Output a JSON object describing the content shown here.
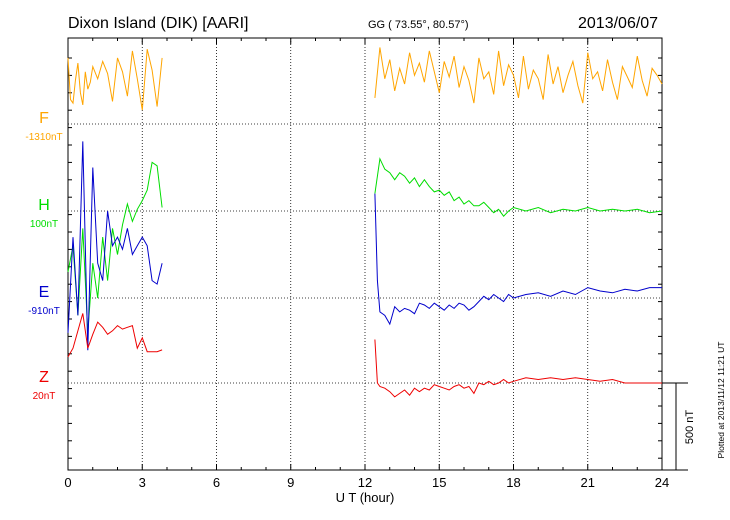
{
  "header": {
    "station": "Dixon Island (DIK)  [AARI]",
    "coords": "GG ( 73.55°,  80.57°)",
    "date": "2013/06/07"
  },
  "plotted": "Plotted at 2013/11/12 11:21 UT",
  "scale_bar_label": "500 nT",
  "chart_data": {
    "type": "line",
    "title": "Dixon Island (DIK)  [AARI]",
    "xlabel": "U T (hour)",
    "ylabel": "",
    "xlim": [
      0,
      24
    ],
    "x_ticks": [
      "0",
      "3",
      "6",
      "9",
      "12",
      "15",
      "18",
      "21",
      "24"
    ],
    "grid": true,
    "gap": [
      3.8,
      12.4
    ],
    "series": [
      {
        "name": "F",
        "baseline_label": "-1310nT",
        "color": "#FFA500",
        "x": [
          0.0,
          0.1,
          0.2,
          0.3,
          0.4,
          0.5,
          0.6,
          0.7,
          0.8,
          0.9,
          1.0,
          1.2,
          1.4,
          1.6,
          1.8,
          2.0,
          2.2,
          2.4,
          2.6,
          2.8,
          3.0,
          3.2,
          3.4,
          3.6,
          3.8,
          12.4,
          12.6,
          12.8,
          13.0,
          13.2,
          13.4,
          13.6,
          13.8,
          14.0,
          14.2,
          14.4,
          14.6,
          14.8,
          15.0,
          15.2,
          15.4,
          15.6,
          15.8,
          16.0,
          16.2,
          16.4,
          16.6,
          16.8,
          17.0,
          17.2,
          17.4,
          17.6,
          17.8,
          18.0,
          18.2,
          18.4,
          18.6,
          18.8,
          19.0,
          19.2,
          19.4,
          19.6,
          19.8,
          20.0,
          20.2,
          20.4,
          20.6,
          20.8,
          21.0,
          21.2,
          21.4,
          21.6,
          21.8,
          22.0,
          22.2,
          22.4,
          22.6,
          22.8,
          23.0,
          23.2,
          23.4,
          23.6,
          23.8,
          24.0
        ],
        "y": [
          380,
          140,
          120,
          250,
          350,
          180,
          110,
          300,
          200,
          240,
          330,
          260,
          360,
          290,
          130,
          380,
          300,
          160,
          420,
          260,
          80,
          430,
          310,
          100,
          380,
          150,
          440,
          260,
          370,
          190,
          320,
          230,
          410,
          280,
          350,
          240,
          420,
          300,
          180,
          360,
          270,
          390,
          210,
          330,
          250,
          120,
          380,
          260,
          300,
          170,
          420,
          220,
          340,
          280,
          150,
          390,
          200,
          310,
          260,
          140,
          400,
          230,
          330,
          180,
          280,
          360,
          220,
          120,
          410,
          260,
          300,
          190,
          370,
          240,
          140,
          330,
          270,
          210,
          390,
          250,
          160,
          320,
          280,
          230
        ]
      },
      {
        "name": "H",
        "baseline_label": "100nT",
        "color": "#00DD00",
        "x": [
          0.0,
          0.2,
          0.4,
          0.6,
          0.8,
          1.0,
          1.2,
          1.4,
          1.6,
          1.8,
          2.0,
          2.2,
          2.4,
          2.6,
          2.8,
          3.0,
          3.2,
          3.4,
          3.6,
          3.8,
          12.4,
          12.6,
          12.8,
          13.0,
          13.2,
          13.4,
          13.6,
          13.8,
          14.0,
          14.2,
          14.4,
          14.6,
          14.8,
          15.0,
          15.2,
          15.4,
          15.6,
          15.8,
          16.0,
          16.2,
          16.4,
          16.6,
          16.8,
          17.0,
          17.2,
          17.4,
          17.6,
          17.8,
          18.0,
          18.5,
          19.0,
          19.5,
          20.0,
          20.5,
          21.0,
          21.5,
          22.0,
          22.5,
          23.0,
          23.5,
          24.0
        ],
        "y": [
          -350,
          -200,
          -600,
          -100,
          -700,
          -300,
          -500,
          -150,
          -400,
          -100,
          -250,
          -80,
          40,
          -60,
          10,
          60,
          120,
          280,
          260,
          20,
          100,
          300,
          240,
          220,
          180,
          220,
          200,
          160,
          190,
          140,
          180,
          140,
          110,
          120,
          90,
          110,
          60,
          80,
          40,
          60,
          30,
          30,
          50,
          20,
          -10,
          10,
          -30,
          0,
          20,
          0,
          20,
          -10,
          10,
          0,
          20,
          0,
          10,
          0,
          10,
          -10,
          0
        ]
      },
      {
        "name": "E",
        "baseline_label": "-910nT",
        "color": "#0000CC",
        "x": [
          0.0,
          0.2,
          0.4,
          0.6,
          0.8,
          1.0,
          1.2,
          1.4,
          1.6,
          1.8,
          2.0,
          2.2,
          2.4,
          2.6,
          2.8,
          3.0,
          3.2,
          3.4,
          3.6,
          3.8,
          12.4,
          12.5,
          12.6,
          12.8,
          13.0,
          13.2,
          13.4,
          13.6,
          13.8,
          14.0,
          14.2,
          14.4,
          14.6,
          14.8,
          15.0,
          15.2,
          15.4,
          15.6,
          15.8,
          16.0,
          16.2,
          16.4,
          16.6,
          16.8,
          17.0,
          17.2,
          17.4,
          17.6,
          17.8,
          18.0,
          18.5,
          19.0,
          19.5,
          20.0,
          20.5,
          21.0,
          21.5,
          22.0,
          22.5,
          23.0,
          23.5,
          24.0
        ],
        "y": [
          -200,
          350,
          -100,
          900,
          -300,
          750,
          200,
          100,
          500,
          300,
          350,
          280,
          400,
          250,
          300,
          350,
          300,
          100,
          80,
          200,
          600,
          100,
          -80,
          -100,
          -150,
          -50,
          -80,
          -60,
          -70,
          -90,
          -30,
          -40,
          -60,
          -30,
          -50,
          -70,
          -40,
          -60,
          -30,
          -40,
          -70,
          -50,
          -20,
          10,
          -10,
          20,
          0,
          -20,
          20,
          0,
          20,
          30,
          10,
          40,
          20,
          60,
          40,
          30,
          50,
          40,
          60,
          60
        ]
      },
      {
        "name": "Z",
        "baseline_label": "20nT",
        "color": "#EE0000",
        "x": [
          0.0,
          0.2,
          0.4,
          0.6,
          0.8,
          1.0,
          1.2,
          1.4,
          1.6,
          1.8,
          2.0,
          2.2,
          2.4,
          2.6,
          2.8,
          3.0,
          3.2,
          3.4,
          3.6,
          3.8,
          12.4,
          12.5,
          12.6,
          12.8,
          13.0,
          13.2,
          13.4,
          13.6,
          13.8,
          14.0,
          14.2,
          14.4,
          14.6,
          14.8,
          15.0,
          15.2,
          15.4,
          15.6,
          15.8,
          16.0,
          16.2,
          16.4,
          16.6,
          16.8,
          17.0,
          17.2,
          17.4,
          17.6,
          17.8,
          18.0,
          18.5,
          19.0,
          19.5,
          20.0,
          20.5,
          21.0,
          21.5,
          22.0,
          22.5,
          23.0,
          23.5,
          24.0
        ],
        "y": [
          150,
          200,
          300,
          400,
          200,
          280,
          350,
          320,
          280,
          300,
          330,
          310,
          320,
          330,
          200,
          260,
          180,
          180,
          180,
          190,
          250,
          0,
          -20,
          -30,
          -50,
          -80,
          -60,
          -40,
          -70,
          -30,
          -50,
          -30,
          -40,
          -10,
          -20,
          -30,
          -40,
          -20,
          -10,
          -30,
          -20,
          -60,
          0,
          -10,
          10,
          -10,
          0,
          20,
          0,
          10,
          30,
          20,
          30,
          20,
          30,
          20,
          10,
          20,
          0,
          0,
          0,
          0
        ]
      }
    ]
  }
}
